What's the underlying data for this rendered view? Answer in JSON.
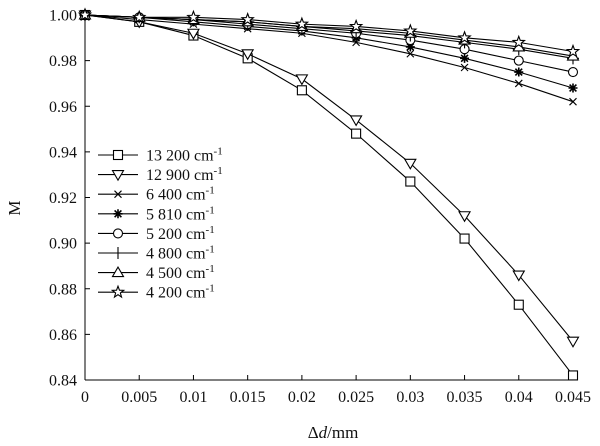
{
  "chart_data": {
    "type": "line",
    "xlabel": "Δd/mm",
    "ylabel": "M",
    "xlim": [
      0,
      0.045
    ],
    "ylim": [
      0.84,
      1.0
    ],
    "grid": false,
    "legend_position": "left-middle",
    "x": [
      0,
      0.005,
      0.01,
      0.015,
      0.02,
      0.025,
      0.03,
      0.035,
      0.04,
      0.045
    ],
    "x_tick_labels": [
      "0",
      "0.005",
      "0.01",
      "0.015",
      "0.02",
      "0.025",
      "0.03",
      "0.035",
      "0.04",
      "0.045"
    ],
    "y_ticks": [
      0.84,
      0.86,
      0.88,
      0.9,
      0.92,
      0.94,
      0.96,
      0.98,
      1.0
    ],
    "y_tick_labels": [
      "0.84",
      "0.86",
      "0.88",
      "0.90",
      "0.92",
      "0.94",
      "0.96",
      "0.98",
      "1.00"
    ],
    "series": [
      {
        "name": "13 200 cm-1",
        "marker": "square",
        "values": [
          1.0,
          0.997,
          0.991,
          0.981,
          0.967,
          0.948,
          0.927,
          0.902,
          0.873,
          0.842
        ]
      },
      {
        "name": "12 900 cm-1",
        "marker": "triangle-down",
        "values": [
          1.0,
          0.997,
          0.992,
          0.983,
          0.972,
          0.954,
          0.935,
          0.912,
          0.886,
          0.857
        ]
      },
      {
        "name": "6 400 cm-1",
        "marker": "x",
        "values": [
          1.0,
          0.998,
          0.996,
          0.994,
          0.992,
          0.988,
          0.983,
          0.977,
          0.97,
          0.962
        ]
      },
      {
        "name": "5 810 cm-1",
        "marker": "asterisk",
        "values": [
          1.0,
          0.999,
          0.997,
          0.995,
          0.993,
          0.99,
          0.986,
          0.981,
          0.975,
          0.968
        ]
      },
      {
        "name": "5 200 cm-1",
        "marker": "circle",
        "values": [
          1.0,
          0.999,
          0.998,
          0.996,
          0.994,
          0.992,
          0.989,
          0.985,
          0.98,
          0.975
        ]
      },
      {
        "name": "4 800 cm-1",
        "marker": "plus",
        "values": [
          1.0,
          0.999,
          0.998,
          0.997,
          0.995,
          0.993,
          0.991,
          0.988,
          0.985,
          0.981
        ]
      },
      {
        "name": "4 500 cm-1",
        "marker": "triangle-up",
        "values": [
          1.0,
          0.999,
          0.998,
          0.997,
          0.995,
          0.994,
          0.992,
          0.989,
          0.986,
          0.982
        ]
      },
      {
        "name": "4 200 cm-1",
        "marker": "star",
        "values": [
          1.0,
          0.999,
          0.999,
          0.998,
          0.996,
          0.995,
          0.993,
          0.99,
          0.988,
          0.984
        ]
      }
    ]
  }
}
